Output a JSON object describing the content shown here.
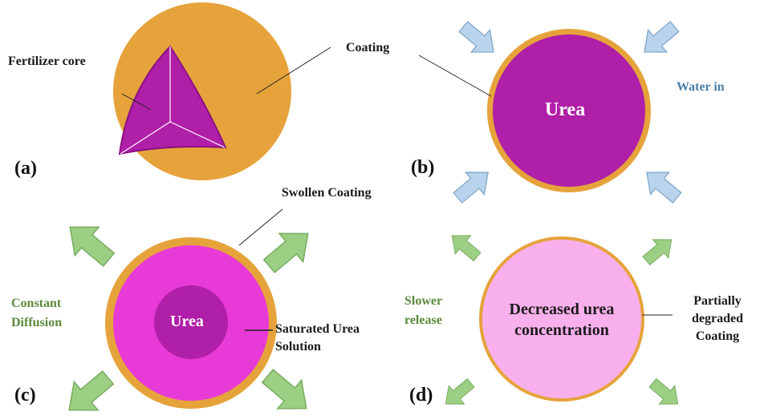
{
  "panel_a": {
    "tag": "(a)",
    "core_label": "Fertilizer core",
    "coating_label": "Coating"
  },
  "panel_b": {
    "tag": "(b)",
    "core_text": "Urea",
    "water_label": "Water in"
  },
  "panel_c": {
    "tag": "(c)",
    "core_text": "Urea",
    "coating_label": "Swollen Coating",
    "solution_label_1": "Saturated Urea",
    "solution_label_2": "Solution",
    "diffusion_label_1": "Constant",
    "diffusion_label_2": "Diffusion"
  },
  "panel_d": {
    "tag": "(d)",
    "center_text_1": "Decreased urea",
    "center_text_2": "concentration",
    "release_label_1": "Slower",
    "release_label_2": "release",
    "coating_label_1": "Partially",
    "coating_label_2": "degraded",
    "coating_label_3": "Coating"
  },
  "colors": {
    "coating": "#e6a33c",
    "urea_core": "#b01fa8",
    "saturated": "#e83ad6",
    "light_pink": "#f8b0ec",
    "water_arrow": "#b9d3ec",
    "release_arrow": "#9ccf84"
  }
}
